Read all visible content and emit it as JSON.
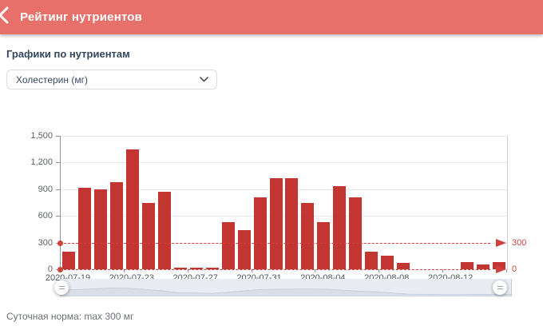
{
  "header": {
    "title": "Рейтинг нутриентов",
    "back_icon": "chevron-left"
  },
  "section": {
    "heading": "Графики по нутриентам"
  },
  "nutrient_select": {
    "value": "Холестерин (мг)",
    "chevron_icon": "chevron-down"
  },
  "chart_data": {
    "type": "bar",
    "title": "",
    "xlabel": "",
    "ylabel": "",
    "ylim": [
      0,
      1500
    ],
    "grid": true,
    "bar_color": "#c23531",
    "plotline_color": "#ce423b",
    "categories": [
      "2020-07-19",
      "2020-07-20",
      "2020-07-21",
      "2020-07-22",
      "2020-07-23",
      "2020-07-24",
      "2020-07-25",
      "2020-07-26",
      "2020-07-27",
      "2020-07-28",
      "2020-07-29",
      "2020-07-30",
      "2020-07-31",
      "2020-08-01",
      "2020-08-02",
      "2020-08-03",
      "2020-08-04",
      "2020-08-05",
      "2020-08-06",
      "2020-08-07",
      "2020-08-08",
      "2020-08-09",
      "2020-08-10",
      "2020-08-11",
      "2020-08-12",
      "2020-08-13",
      "2020-08-14",
      "2020-08-15"
    ],
    "values": [
      200,
      920,
      900,
      980,
      1350,
      750,
      870,
      15,
      20,
      15,
      530,
      440,
      810,
      1020,
      1020,
      750,
      530,
      930,
      810,
      200,
      150,
      75,
      0,
      0,
      0,
      85,
      55,
      80
    ],
    "y_ticks": [
      "0",
      "300",
      "600",
      "900",
      "1,200",
      "1,500"
    ],
    "x_ticks": [
      {
        "index": 0,
        "label": "2020-07-19"
      },
      {
        "index": 4,
        "label": "2020-07-23"
      },
      {
        "index": 8,
        "label": "2020-07-27"
      },
      {
        "index": 12,
        "label": "2020-07-31"
      },
      {
        "index": 16,
        "label": "2020-08-04"
      },
      {
        "index": 20,
        "label": "2020-08-08"
      },
      {
        "index": 24,
        "label": "2020-08-12"
      }
    ],
    "plotlines": [
      {
        "value": 300,
        "label": "300"
      },
      {
        "value": 0,
        "label": "0"
      }
    ]
  },
  "navigator": {
    "left_handle_icon": "drag-handle",
    "right_handle_icon": "drag-handle"
  },
  "footnote": "Суточная норма: max 300 мг"
}
